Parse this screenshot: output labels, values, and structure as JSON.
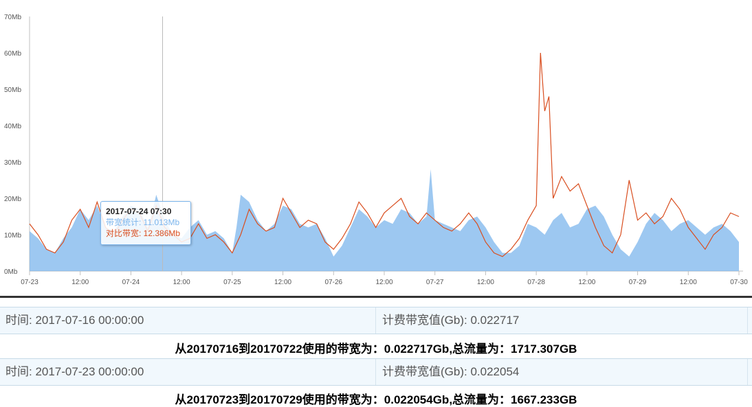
{
  "chart_data": {
    "type": "area",
    "ylabel": "",
    "xlabel": "",
    "ylim": [
      0,
      70
    ],
    "y_ticks": [
      "0Mb",
      "10Mb",
      "20Mb",
      "30Mb",
      "40Mb",
      "50Mb",
      "60Mb",
      "70Mb"
    ],
    "x_ticks": [
      "07-23",
      "12:00",
      "07-24",
      "12:00",
      "07-25",
      "12:00",
      "07-26",
      "12:00",
      "07-27",
      "12:00",
      "07-28",
      "12:00",
      "07-29",
      "12:00",
      "07-30"
    ],
    "x_hours": [
      0,
      168
    ],
    "series": [
      {
        "name": "带宽统计",
        "type": "area",
        "color": "#7cb5ec",
        "points": [
          [
            0,
            11
          ],
          [
            2,
            9
          ],
          [
            4,
            6
          ],
          [
            6,
            5
          ],
          [
            8,
            9
          ],
          [
            10,
            12
          ],
          [
            12,
            17
          ],
          [
            14,
            14
          ],
          [
            16,
            18
          ],
          [
            18,
            12
          ],
          [
            20,
            11
          ],
          [
            22,
            15
          ],
          [
            24,
            18
          ],
          [
            26,
            17
          ],
          [
            28,
            12
          ],
          [
            29,
            16
          ],
          [
            30,
            21
          ],
          [
            32,
            14
          ],
          [
            34,
            10
          ],
          [
            36,
            9
          ],
          [
            38,
            12
          ],
          [
            40,
            14
          ],
          [
            42,
            10
          ],
          [
            44,
            11
          ],
          [
            46,
            9
          ],
          [
            48,
            5
          ],
          [
            49,
            12
          ],
          [
            50,
            21
          ],
          [
            52,
            19
          ],
          [
            54,
            14
          ],
          [
            56,
            11
          ],
          [
            58,
            13
          ],
          [
            60,
            18
          ],
          [
            62,
            17
          ],
          [
            64,
            13
          ],
          [
            66,
            12
          ],
          [
            68,
            13
          ],
          [
            70,
            9
          ],
          [
            72,
            4
          ],
          [
            74,
            7
          ],
          [
            76,
            12
          ],
          [
            78,
            17
          ],
          [
            80,
            15
          ],
          [
            82,
            12
          ],
          [
            84,
            14
          ],
          [
            86,
            13
          ],
          [
            88,
            17
          ],
          [
            90,
            16
          ],
          [
            92,
            13
          ],
          [
            94,
            15
          ],
          [
            95,
            28
          ],
          [
            96,
            14
          ],
          [
            98,
            13
          ],
          [
            100,
            12
          ],
          [
            102,
            11
          ],
          [
            104,
            14
          ],
          [
            106,
            15
          ],
          [
            108,
            12
          ],
          [
            110,
            8
          ],
          [
            112,
            5
          ],
          [
            114,
            5
          ],
          [
            116,
            7
          ],
          [
            118,
            13
          ],
          [
            120,
            12
          ],
          [
            122,
            10
          ],
          [
            124,
            14
          ],
          [
            126,
            16
          ],
          [
            128,
            12
          ],
          [
            130,
            13
          ],
          [
            132,
            17
          ],
          [
            134,
            18
          ],
          [
            136,
            15
          ],
          [
            138,
            10
          ],
          [
            140,
            6
          ],
          [
            142,
            4
          ],
          [
            144,
            8
          ],
          [
            146,
            13
          ],
          [
            148,
            16
          ],
          [
            150,
            14
          ],
          [
            152,
            11
          ],
          [
            154,
            13
          ],
          [
            156,
            14
          ],
          [
            158,
            12
          ],
          [
            160,
            10
          ],
          [
            162,
            12
          ],
          [
            164,
            13
          ],
          [
            166,
            11
          ],
          [
            168,
            8
          ]
        ]
      },
      {
        "name": "对比带宽",
        "type": "line",
        "color": "#d94e1f",
        "points": [
          [
            0,
            13
          ],
          [
            2,
            10
          ],
          [
            4,
            6
          ],
          [
            6,
            5
          ],
          [
            8,
            8
          ],
          [
            10,
            14
          ],
          [
            12,
            17
          ],
          [
            14,
            12
          ],
          [
            16,
            19
          ],
          [
            18,
            12
          ],
          [
            20,
            10
          ],
          [
            22,
            14
          ],
          [
            24,
            17
          ],
          [
            26,
            16
          ],
          [
            28,
            11
          ],
          [
            30,
            18
          ],
          [
            32,
            12
          ],
          [
            34,
            10
          ],
          [
            36,
            8
          ],
          [
            38,
            9
          ],
          [
            40,
            13
          ],
          [
            42,
            9
          ],
          [
            44,
            10
          ],
          [
            46,
            8
          ],
          [
            48,
            5
          ],
          [
            50,
            10
          ],
          [
            52,
            17
          ],
          [
            54,
            13
          ],
          [
            56,
            11
          ],
          [
            58,
            12
          ],
          [
            60,
            20
          ],
          [
            62,
            16
          ],
          [
            64,
            12
          ],
          [
            66,
            14
          ],
          [
            68,
            13
          ],
          [
            70,
            8
          ],
          [
            72,
            6
          ],
          [
            74,
            9
          ],
          [
            76,
            13
          ],
          [
            78,
            19
          ],
          [
            80,
            16
          ],
          [
            82,
            12
          ],
          [
            84,
            16
          ],
          [
            86,
            18
          ],
          [
            88,
            20
          ],
          [
            90,
            15
          ],
          [
            92,
            13
          ],
          [
            94,
            16
          ],
          [
            96,
            14
          ],
          [
            98,
            12
          ],
          [
            100,
            11
          ],
          [
            102,
            13
          ],
          [
            104,
            16
          ],
          [
            106,
            13
          ],
          [
            108,
            8
          ],
          [
            110,
            5
          ],
          [
            112,
            4
          ],
          [
            114,
            6
          ],
          [
            116,
            9
          ],
          [
            118,
            14
          ],
          [
            120,
            18
          ],
          [
            121,
            60
          ],
          [
            122,
            44
          ],
          [
            123,
            48
          ],
          [
            124,
            20
          ],
          [
            126,
            26
          ],
          [
            128,
            22
          ],
          [
            130,
            24
          ],
          [
            132,
            18
          ],
          [
            134,
            12
          ],
          [
            136,
            7
          ],
          [
            138,
            5
          ],
          [
            140,
            10
          ],
          [
            142,
            25
          ],
          [
            144,
            14
          ],
          [
            146,
            16
          ],
          [
            148,
            13
          ],
          [
            150,
            15
          ],
          [
            152,
            20
          ],
          [
            154,
            17
          ],
          [
            156,
            12
          ],
          [
            158,
            9
          ],
          [
            160,
            6
          ],
          [
            162,
            10
          ],
          [
            164,
            12
          ],
          [
            166,
            16
          ],
          [
            168,
            15
          ]
        ]
      }
    ],
    "tooltip": {
      "title": "2017-07-24 07:30",
      "hour": 31.5,
      "rows": [
        {
          "label": "带宽统计: 11.013Mb",
          "color": "#7cb5ec"
        },
        {
          "label": "对比带宽: 12.386Mb",
          "color": "#d94e1f"
        }
      ]
    },
    "grid": false
  },
  "rows": [
    {
      "time": "时间: 2017-07-16 00:00:00",
      "billing": "计费带宽值(Gb): 0.022717",
      "summary": "从20170716到20170722使用的带宽为：0.022717Gb,总流量为：1717.307GB"
    },
    {
      "time": "时间: 2017-07-23 00:00:00",
      "billing": "计费带宽值(Gb): 0.022054",
      "summary": "从20170723到20170729使用的带宽为：0.022054Gb,总流量为：1667.233GB"
    }
  ]
}
